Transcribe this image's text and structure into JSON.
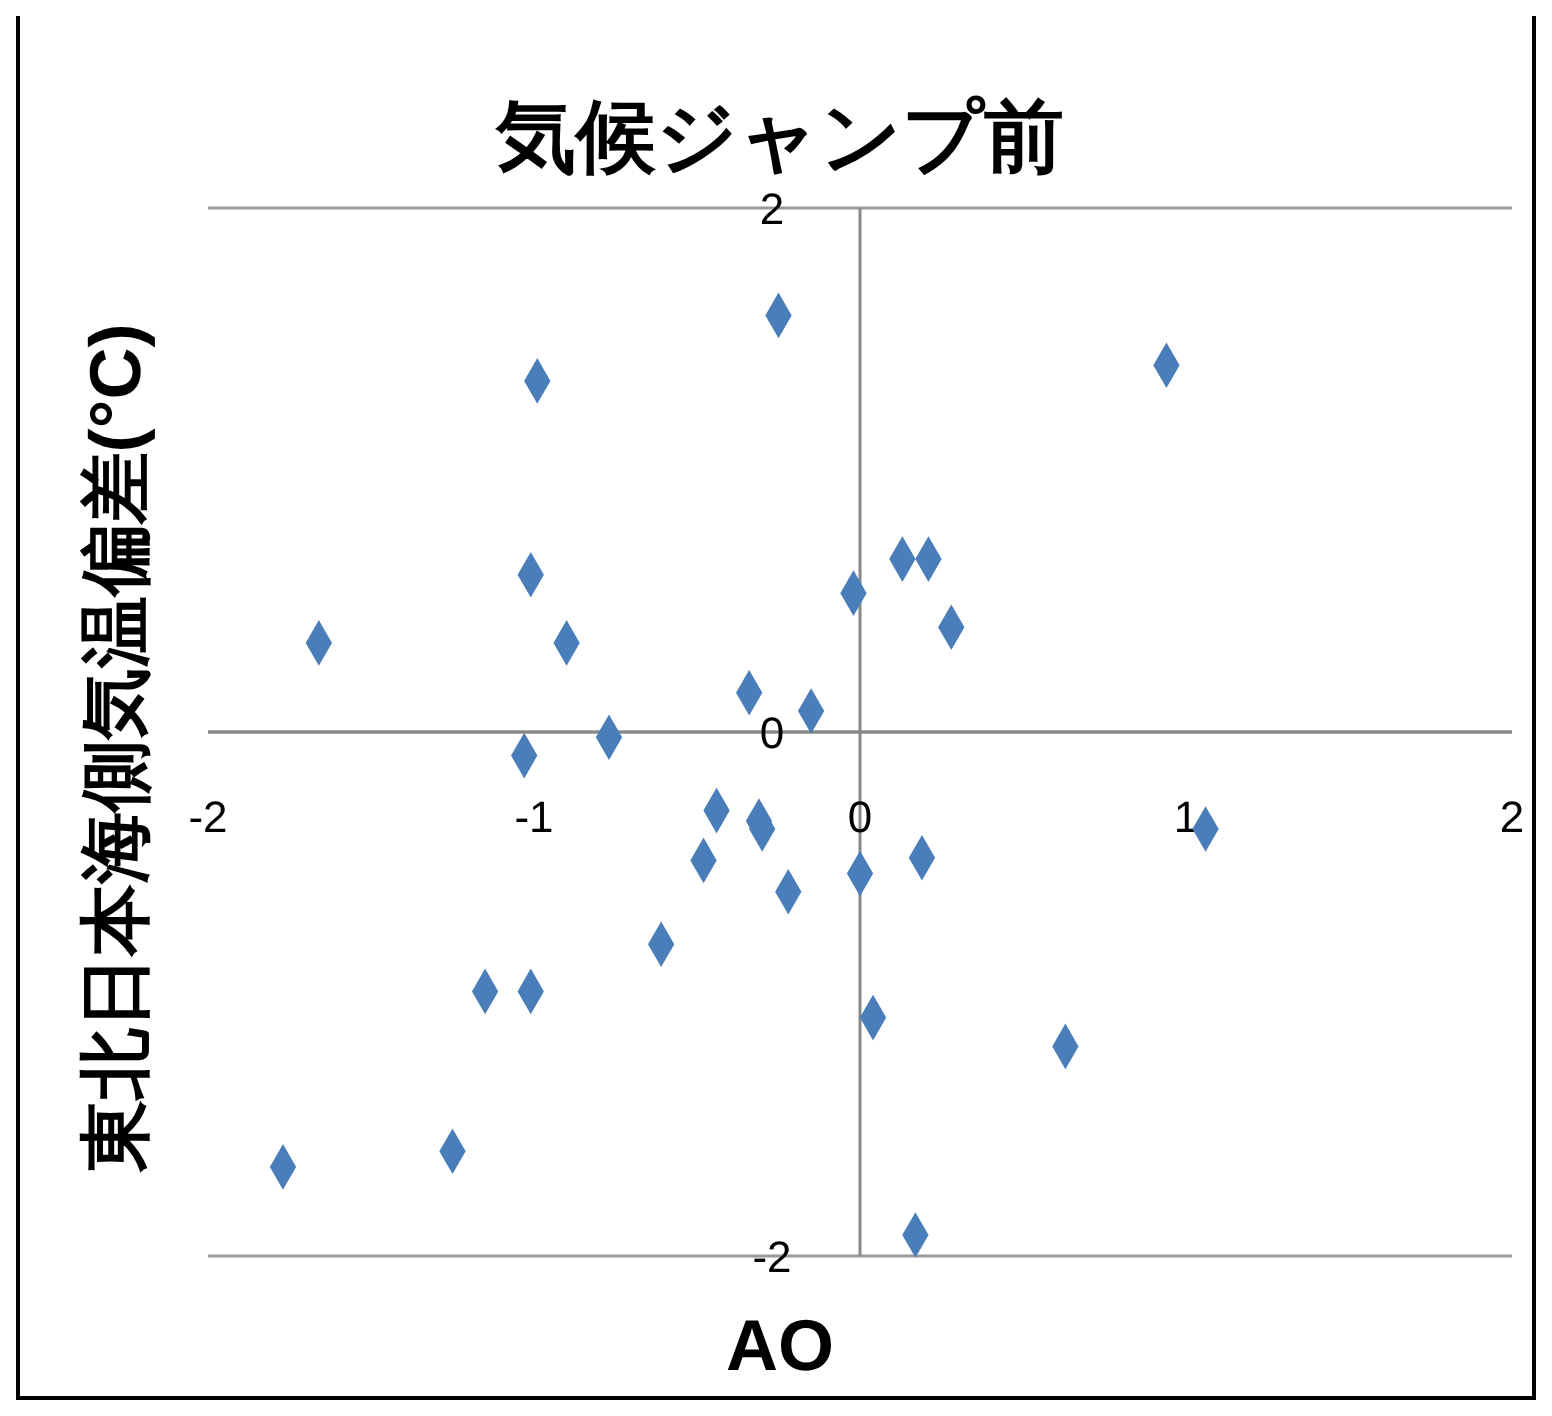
{
  "chart_data": {
    "type": "scatter",
    "title": "気候ジャンプ前",
    "xlabel": "AO",
    "ylabel": "東北日本海側気温偏差(°C)",
    "marker": "diamond",
    "grid": "y",
    "color": "#4a7ebb",
    "x": [
      -1.66,
      -0.99,
      -0.25,
      0.94,
      -1.01,
      -0.9,
      -0.02,
      0.13,
      0.21,
      0.28,
      -0.34,
      -0.15,
      -0.77,
      -1.03,
      -0.44,
      -0.31,
      -0.3,
      -0.48,
      0.19,
      0.0,
      -0.22,
      1.06,
      -0.61,
      -1.15,
      -1.01,
      0.04,
      0.63,
      -1.25,
      -1.77,
      0.17
    ],
    "values": [
      0.34,
      1.34,
      1.59,
      1.4,
      0.6,
      0.34,
      0.53,
      0.66,
      0.66,
      0.4,
      0.15,
      0.08,
      -0.02,
      -0.09,
      -0.3,
      -0.34,
      -0.37,
      -0.49,
      -0.48,
      -0.54,
      -0.61,
      -0.37,
      -0.81,
      -0.99,
      -0.99,
      -1.09,
      -1.2,
      -1.6,
      -1.66,
      -1.92
    ],
    "xlim": [
      -2,
      2
    ],
    "ylim": [
      -2,
      2
    ],
    "xticks": [
      -2,
      -1,
      0,
      1,
      2
    ],
    "yticks": [
      -2,
      0,
      2
    ]
  }
}
